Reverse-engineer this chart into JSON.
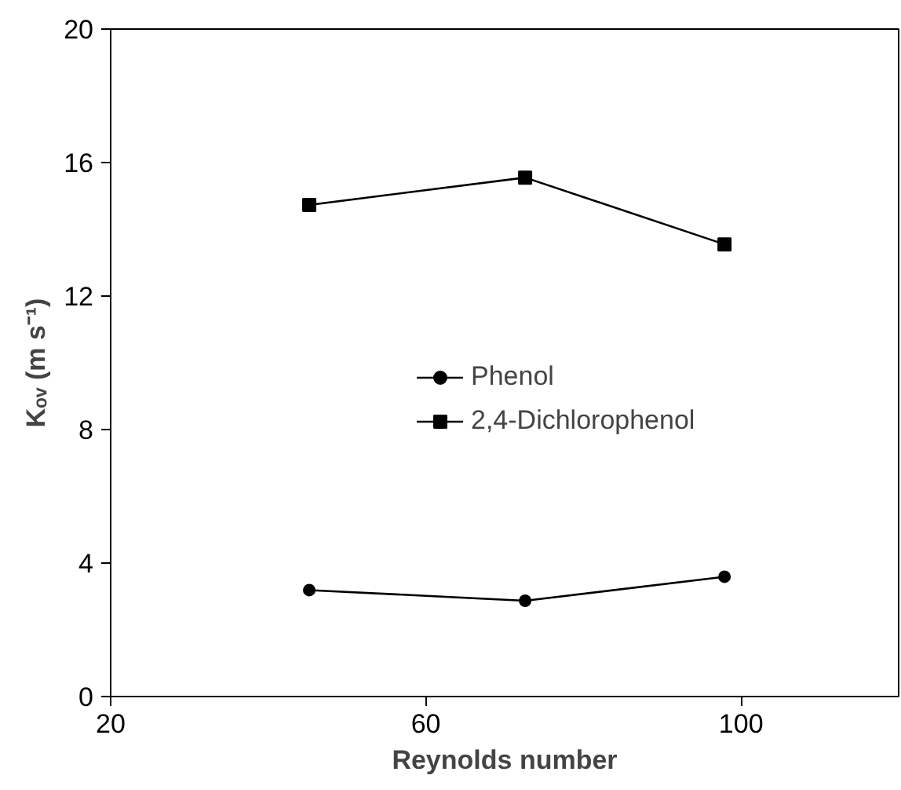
{
  "chart_data": {
    "type": "line",
    "xlabel": "Reynolds number",
    "ylabel": "Kₒᵥ (m s⁻¹)",
    "x": [
      45.2,
      72.6,
      97.9
    ],
    "series": [
      {
        "name": "Phenol",
        "color": "#000000",
        "marker": "circle",
        "values": [
          3.19,
          2.87,
          3.59
        ]
      },
      {
        "name": "2,4-Dichlorophenol",
        "color": "#000000",
        "marker": "square",
        "values": [
          14.73,
          15.55,
          13.55
        ]
      }
    ],
    "xlim": [
      20,
      120
    ],
    "xticks": [
      20,
      60,
      100
    ],
    "ylim": [
      0,
      20
    ],
    "yticks": [
      0,
      4,
      8,
      12,
      16,
      20
    ],
    "grid": false,
    "legend": "right",
    "line_style": "solid"
  }
}
